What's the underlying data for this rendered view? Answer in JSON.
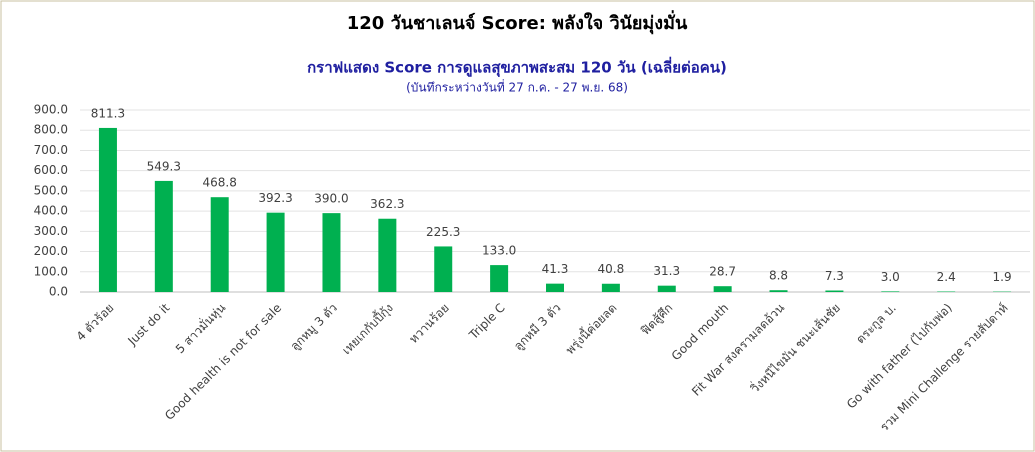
{
  "chart_data": {
    "type": "bar",
    "title": "120 วันชาเลนจ์ Score: พลังใจ วินัยมุ่งมั่น",
    "subtitle": "กราฟแสดง Score การดูแลสุขภาพสะสม 120 วัน (เฉลี่ยต่อคน)",
    "note": "(บันทึกระหว่างวันที่ 27 ก.ค. - 27 พ.ย. 68)",
    "categories": [
      "4 ตัวร้อย",
      "Just do it",
      "5 สาวมั่นหุ่น",
      "Good health is not for sale",
      "ลูกหมู 3 ตัว",
      "เหยเกกับปี้กุ้ง",
      "หวานร้อย",
      "Triple C",
      "ลูกหมี 3 ตัว",
      "พรุ่งนี้ค่อยลด",
      "ฟิตสู้ศึก",
      "Good mouth",
      "Fit War สงครามลดอ้วน",
      "วิ่งหนีไขมัน ชนะเส้นชัย",
      "ตระกูล บ.",
      "Go with father (ไปกับพ่อ)",
      "รวม Mini Challenge รายสัปดาห์"
    ],
    "values": [
      811.3,
      549.3,
      468.8,
      392.3,
      390.0,
      362.3,
      225.3,
      133.0,
      41.3,
      40.8,
      31.3,
      28.7,
      8.8,
      7.3,
      3.0,
      2.4,
      1.9
    ],
    "value_labels": [
      "811.3",
      "549.3",
      "468.8",
      "392.3",
      "390.0",
      "362.3",
      "225.3",
      "133.0",
      "41.3",
      "40.8",
      "31.3",
      "28.7",
      "8.8",
      "7.3",
      "3.0",
      "2.4",
      "1.9"
    ],
    "color": "#00b050",
    "ylim": [
      0,
      900
    ],
    "yticks": [
      {
        "value": 0,
        "label": "0.0"
      },
      {
        "value": 100,
        "label": "100.0"
      },
      {
        "value": 200,
        "label": "200.0"
      },
      {
        "value": 300,
        "label": "300.0"
      },
      {
        "value": 400,
        "label": "400.0"
      },
      {
        "value": 500,
        "label": "500.0"
      },
      {
        "value": 600,
        "label": "600.0"
      },
      {
        "value": 700,
        "label": "700.0"
      },
      {
        "value": 800,
        "label": "800.0"
      },
      {
        "value": 900,
        "label": "900.0"
      }
    ],
    "grid": true
  }
}
